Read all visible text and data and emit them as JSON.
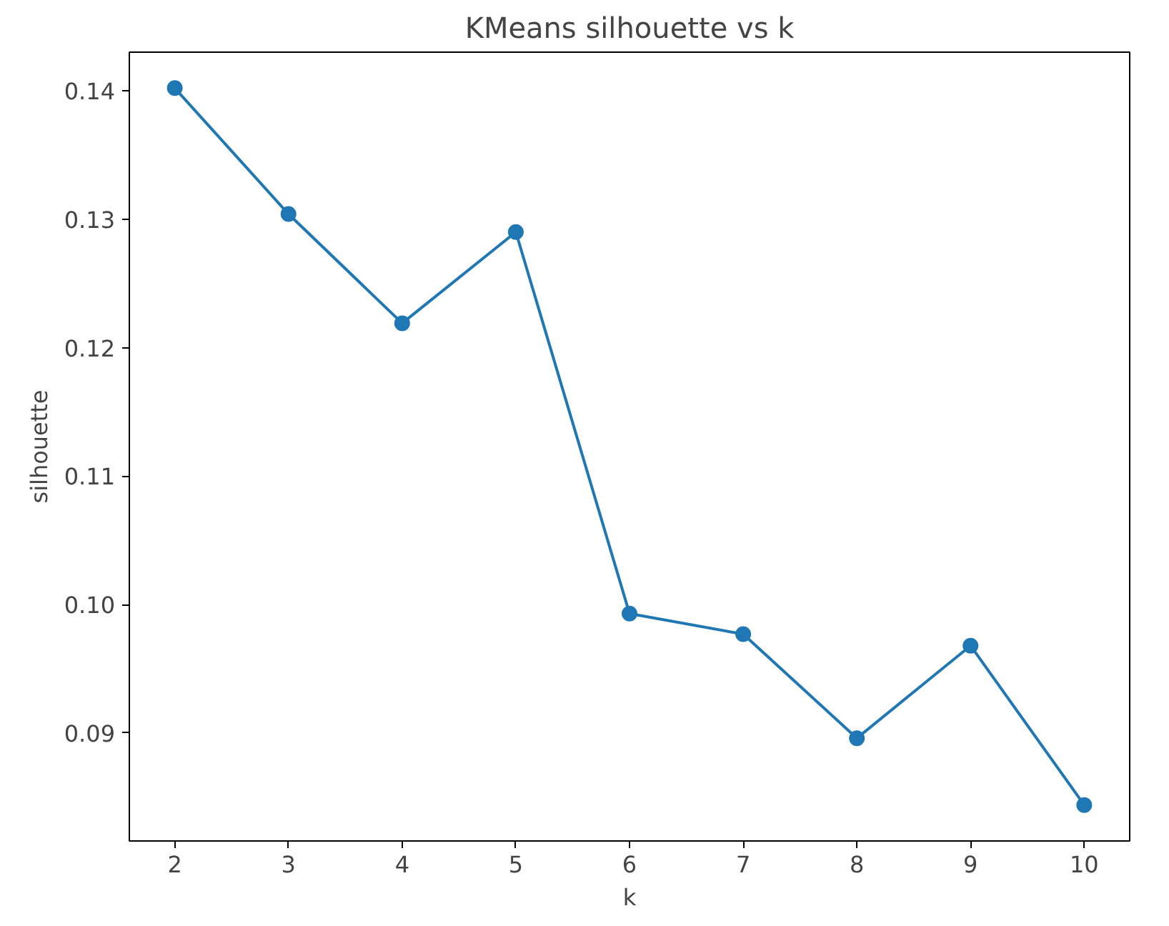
{
  "chart_data": {
    "type": "line",
    "title": "KMeans silhouette vs k",
    "xlabel": "k",
    "ylabel": "silhouette",
    "x": [
      2,
      3,
      4,
      5,
      6,
      7,
      8,
      9,
      10
    ],
    "series": [
      {
        "color": "#1f77b4",
        "values": [
          0.1402,
          0.1304,
          0.1219,
          0.129,
          0.0993,
          0.0977,
          0.0896,
          0.0968,
          0.0844
        ]
      }
    ],
    "xlim": [
      1.6,
      10.4
    ],
    "ylim": [
      0.0816,
      0.143
    ],
    "xticks": [
      2,
      3,
      4,
      5,
      6,
      7,
      8,
      9,
      10
    ],
    "yticks": [
      {
        "value": 0.09,
        "label": "0.09"
      },
      {
        "value": 0.1,
        "label": "0.10"
      },
      {
        "value": 0.11,
        "label": "0.11"
      },
      {
        "value": 0.12,
        "label": "0.12"
      },
      {
        "value": 0.13,
        "label": "0.13"
      },
      {
        "value": 0.14,
        "label": "0.14"
      }
    ],
    "marker": "circle",
    "grid": false
  }
}
